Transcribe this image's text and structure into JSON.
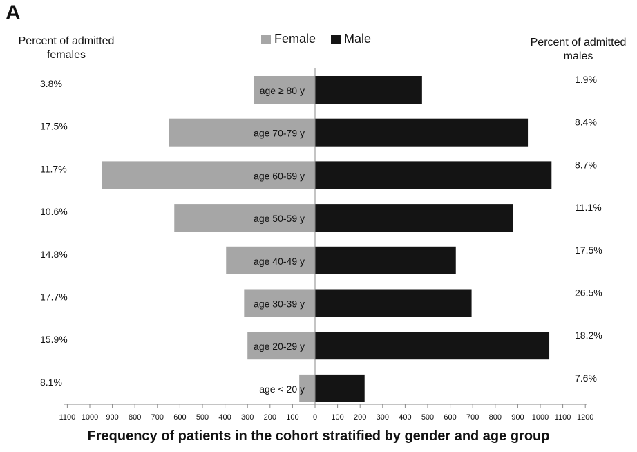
{
  "panel_label": "A",
  "left_header": [
    "Percent of admitted",
    "females"
  ],
  "right_header": [
    "Percent of admitted",
    "males"
  ],
  "legend": {
    "female": {
      "label": "Female",
      "color": "#a6a6a6"
    },
    "male": {
      "label": "Male",
      "color": "#141414"
    }
  },
  "chart_data": {
    "type": "bar",
    "orientation": "horizontal-population-pyramid",
    "categories": [
      "age ≥ 80 y",
      "age 70-79 y",
      "age 60-69 y",
      "age 50-59 y",
      "age 40-49 y",
      "age 30-39 y",
      "age 20-29 y",
      "age < 20 y"
    ],
    "series": [
      {
        "name": "Female",
        "values": [
          270,
          650,
          945,
          625,
          395,
          315,
          300,
          70
        ],
        "color": "#a6a6a6"
      },
      {
        "name": "Male",
        "values": [
          475,
          945,
          1050,
          880,
          625,
          695,
          1040,
          220
        ],
        "color": "#141414"
      }
    ],
    "female_percent_labels": [
      "3.8%",
      "17.5%",
      "11.7%",
      "10.6%",
      "14.8%",
      "17.7%",
      "15.9%",
      "8.1%"
    ],
    "male_percent_labels": [
      "1.9%",
      "8.4%",
      "8.7%",
      "11.1%",
      "17.5%",
      "26.5%",
      "18.2%",
      "7.6%"
    ],
    "x_ticks_female": [
      "1100",
      "1000",
      "900",
      "800",
      "700",
      "600",
      "500",
      "400",
      "300",
      "200",
      "100"
    ],
    "x_ticks_male": [
      "0",
      "100",
      "200",
      "300",
      "400",
      "500",
      "600",
      "700",
      "800",
      "900",
      "1000",
      "1100",
      "1200"
    ],
    "xlim": [
      -1100,
      1200
    ],
    "xlabel": "Frequency of patients in the cohort stratified by gender and age group",
    "title": ""
  }
}
